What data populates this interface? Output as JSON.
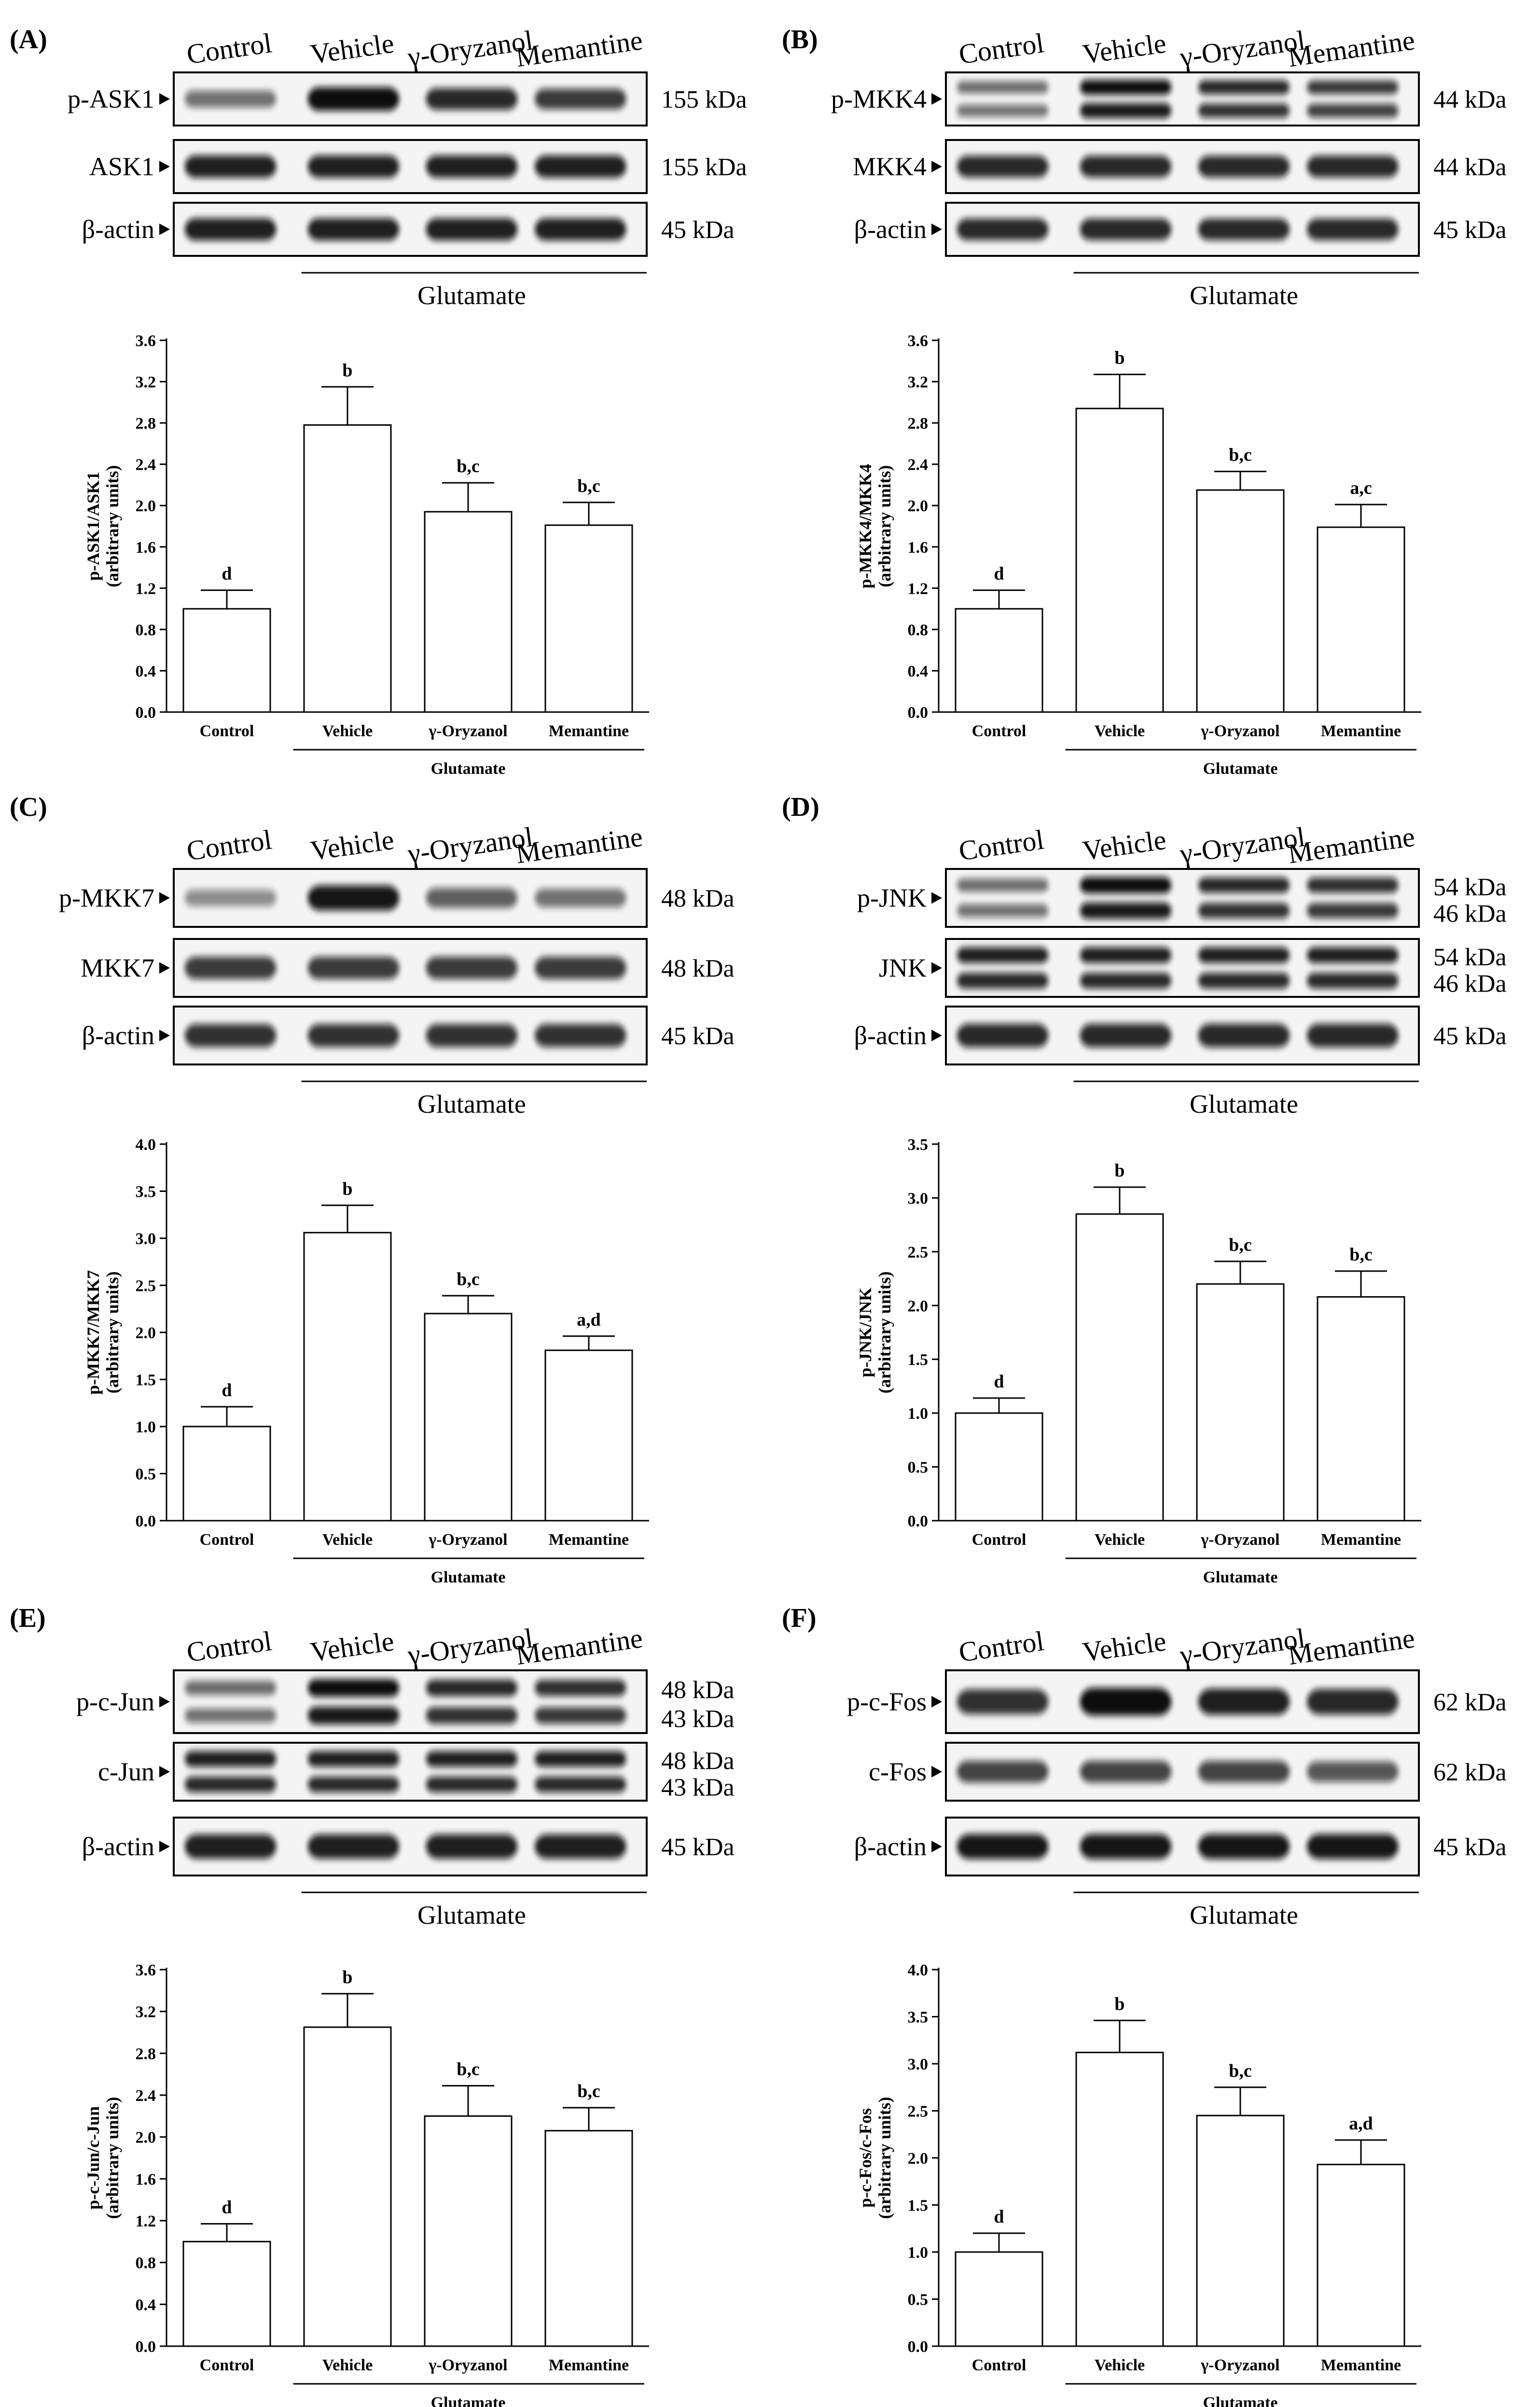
{
  "lanes": [
    "Control",
    "Vehicle",
    "γ-Oryzanol",
    "Memantine"
  ],
  "treatment_label": "Glutamate",
  "colors": {
    "band": "#111111",
    "axis": "#000000",
    "bar_fill": "#ffffff",
    "border": "#000000"
  },
  "panels": [
    {
      "letter": "(A)",
      "blots": [
        {
          "label": "p-ASK1",
          "kda": [
            "155 kDa"
          ],
          "bands": 1,
          "intensity": [
            0.45,
            1.0,
            0.85,
            0.75
          ]
        },
        {
          "label": "ASK1",
          "kda": [
            "155 kDa"
          ],
          "bands": 1,
          "intensity": [
            0.9,
            0.9,
            0.9,
            0.9
          ]
        },
        {
          "label": "β-actin",
          "kda": [
            "45 kDa"
          ],
          "bands": 1,
          "intensity": [
            0.9,
            0.9,
            0.9,
            0.9
          ]
        }
      ]
    },
    {
      "letter": "(B)",
      "blots": [
        {
          "label": "p-MKK4",
          "kda": [
            "44 kDa"
          ],
          "bands": 2,
          "intensity": [
            0.45,
            1.0,
            0.85,
            0.75
          ]
        },
        {
          "label": "MKK4",
          "kda": [
            "44 kDa"
          ],
          "bands": 1,
          "intensity": [
            0.85,
            0.85,
            0.85,
            0.85
          ]
        },
        {
          "label": "β-actin",
          "kda": [
            "45 kDa"
          ],
          "bands": 1,
          "intensity": [
            0.85,
            0.85,
            0.85,
            0.85
          ]
        }
      ]
    },
    {
      "letter": "(C)",
      "blots": [
        {
          "label": "p-MKK7",
          "kda": [
            "48 kDa"
          ],
          "bands": 1,
          "intensity": [
            0.3,
            0.95,
            0.55,
            0.45
          ]
        },
        {
          "label": "MKK7",
          "kda": [
            "48 kDa"
          ],
          "bands": 1,
          "intensity": [
            0.75,
            0.75,
            0.75,
            0.75
          ]
        },
        {
          "label": "β-actin",
          "kda": [
            "45 kDa"
          ],
          "bands": 1,
          "intensity": [
            0.8,
            0.8,
            0.8,
            0.8
          ]
        }
      ]
    },
    {
      "letter": "(D)",
      "blots": [
        {
          "label": "p-JNK",
          "kda": [
            "54 kDa",
            "46 kDa"
          ],
          "bands": 2,
          "intensity": [
            0.45,
            1.0,
            0.85,
            0.8
          ]
        },
        {
          "label": "JNK",
          "kda": [
            "54 kDa",
            "46 kDa"
          ],
          "bands": 2,
          "intensity": [
            0.9,
            0.9,
            0.9,
            0.9
          ]
        },
        {
          "label": "β-actin",
          "kda": [
            "45 kDa"
          ],
          "bands": 1,
          "intensity": [
            0.85,
            0.85,
            0.85,
            0.85
          ]
        }
      ]
    },
    {
      "letter": "(E)",
      "blots": [
        {
          "label": "p-c-Jun",
          "kda": [
            "48 kDa",
            "43 kDa"
          ],
          "bands": 2,
          "intensity": [
            0.45,
            1.0,
            0.85,
            0.8
          ]
        },
        {
          "label": "c-Jun",
          "kda": [
            "48 kDa",
            "43 kDa"
          ],
          "bands": 2,
          "intensity": [
            0.9,
            0.9,
            0.9,
            0.9
          ]
        },
        {
          "label": "β-actin",
          "kda": [
            "45 kDa"
          ],
          "bands": 1,
          "intensity": [
            0.9,
            0.9,
            0.9,
            0.9
          ]
        }
      ]
    },
    {
      "letter": "(F)",
      "blots": [
        {
          "label": "p-c-Fos",
          "kda": [
            "62 kDa"
          ],
          "bands": 1,
          "intensity": [
            0.8,
            1.0,
            0.9,
            0.85
          ]
        },
        {
          "label": "c-Fos",
          "kda": [
            "62 kDa"
          ],
          "bands": 1,
          "intensity": [
            0.7,
            0.7,
            0.7,
            0.6
          ]
        },
        {
          "label": "β-actin",
          "kda": [
            "45 kDa"
          ],
          "bands": 1,
          "intensity": [
            0.95,
            0.95,
            0.95,
            0.95
          ]
        }
      ]
    }
  ],
  "chart_data": [
    {
      "panel": "(A)",
      "type": "bar",
      "categories": [
        "Control",
        "Vehicle",
        "γ-Oryzanol",
        "Memantine"
      ],
      "group_label": "Glutamate",
      "values": [
        1.0,
        2.78,
        1.94,
        1.81
      ],
      "errors": [
        0.18,
        0.37,
        0.28,
        0.22
      ],
      "annotations": [
        "d",
        "b",
        "b,c",
        "b,c"
      ],
      "ylabel": [
        "p-ASK1/ASK1",
        "(arbitrary units)"
      ],
      "ylim": [
        0,
        3.6
      ],
      "yticks": [
        "0.0",
        "0.4",
        "0.8",
        "1.2",
        "1.6",
        "2.0",
        "2.4",
        "2.8",
        "3.2",
        "3.6"
      ]
    },
    {
      "panel": "(B)",
      "type": "bar",
      "categories": [
        "Control",
        "Vehicle",
        "γ-Oryzanol",
        "Memantine"
      ],
      "group_label": "Glutamate",
      "values": [
        1.0,
        2.94,
        2.15,
        1.79
      ],
      "errors": [
        0.18,
        0.33,
        0.18,
        0.22
      ],
      "annotations": [
        "d",
        "b",
        "b,c",
        "a,c"
      ],
      "ylabel": [
        "p-MKK4/MKK4",
        "(arbitrary units)"
      ],
      "ylim": [
        0,
        3.6
      ],
      "yticks": [
        "0.0",
        "0.4",
        "0.8",
        "1.2",
        "1.6",
        "2.0",
        "2.4",
        "2.8",
        "3.2",
        "3.6"
      ]
    },
    {
      "panel": "(C)",
      "type": "bar",
      "categories": [
        "Control",
        "Vehicle",
        "γ-Oryzanol",
        "Memantine"
      ],
      "group_label": "Glutamate",
      "values": [
        1.0,
        3.06,
        2.2,
        1.81
      ],
      "errors": [
        0.21,
        0.29,
        0.19,
        0.15
      ],
      "annotations": [
        "d",
        "b",
        "b,c",
        "a,d"
      ],
      "ylabel": [
        "p-MKK7/MKK7",
        "(arbitrary units)"
      ],
      "ylim": [
        0,
        4.0
      ],
      "yticks": [
        "0.0",
        "0.5",
        "1.0",
        "1.5",
        "2.0",
        "2.5",
        "3.0",
        "3.5",
        "4.0"
      ]
    },
    {
      "panel": "(D)",
      "type": "bar",
      "categories": [
        "Control",
        "Vehicle",
        "γ-Oryzanol",
        "Memantine"
      ],
      "group_label": "Glutamate",
      "values": [
        1.0,
        2.85,
        2.2,
        2.08
      ],
      "errors": [
        0.14,
        0.25,
        0.21,
        0.24
      ],
      "annotations": [
        "d",
        "b",
        "b,c",
        "b,c"
      ],
      "ylabel": [
        "p-JNK/JNK",
        "(arbitrary units)"
      ],
      "ylim": [
        0,
        3.5
      ],
      "yticks": [
        "0.0",
        "0.5",
        "1.0",
        "1.5",
        "2.0",
        "2.5",
        "3.0",
        "3.5"
      ]
    },
    {
      "panel": "(E)",
      "type": "bar",
      "categories": [
        "Control",
        "Vehicle",
        "γ-Oryzanol",
        "Memantine"
      ],
      "group_label": "Glutamate",
      "values": [
        1.0,
        3.05,
        2.2,
        2.06
      ],
      "errors": [
        0.17,
        0.32,
        0.29,
        0.22
      ],
      "annotations": [
        "d",
        "b",
        "b,c",
        "b,c"
      ],
      "ylabel": [
        "p-c-Jun/c-Jun",
        "(arbitrary units)"
      ],
      "ylim": [
        0,
        3.6
      ],
      "yticks": [
        "0.0",
        "0.4",
        "0.8",
        "1.2",
        "1.6",
        "2.0",
        "2.4",
        "2.8",
        "3.2",
        "3.6"
      ]
    },
    {
      "panel": "(F)",
      "type": "bar",
      "categories": [
        "Control",
        "Vehicle",
        "γ-Oryzanol",
        "Memantine"
      ],
      "group_label": "Glutamate",
      "values": [
        1.0,
        3.12,
        2.45,
        1.93
      ],
      "errors": [
        0.2,
        0.34,
        0.3,
        0.26
      ],
      "annotations": [
        "d",
        "b",
        "b,c",
        "a,d"
      ],
      "ylabel": [
        "p-c-Fos/c-Fos",
        "(arbitrary units)"
      ],
      "ylim": [
        0,
        4.0
      ],
      "yticks": [
        "0.0",
        "0.5",
        "1.0",
        "1.5",
        "2.0",
        "2.5",
        "3.0",
        "3.5",
        "4.0"
      ]
    }
  ]
}
